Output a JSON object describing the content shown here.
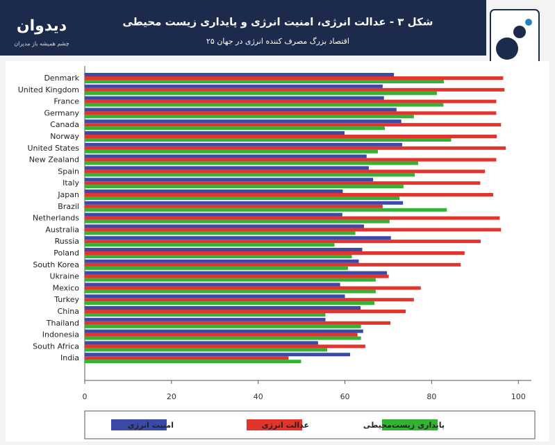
{
  "header": {
    "brand": "دیدوان",
    "tagline": "چشم همیشه باز مدیران",
    "title": "شکل ۳ - عدالت انرژی، امنیت انرژی و پایداری زیست محیطی",
    "subtitle": "۲۵ اقتصاد بزرگ مصرف کننده انرژی در جهان"
  },
  "chart_data": {
    "type": "bar",
    "orientation": "horizontal",
    "categories": [
      "Denmark",
      "United Kingdom",
      "France",
      "Germany",
      "Canada",
      "Norway",
      "United States",
      "New Zealand",
      "Spain",
      "Italy",
      "Japan",
      "Brazil",
      "Netherlands",
      "Australia",
      "Russia",
      "Poland",
      "South Korea",
      "Ukraine",
      "Mexico",
      "Turkey",
      "China",
      "Thailand",
      "Indonesia",
      "South Africa",
      "India"
    ],
    "series": [
      {
        "name": "امنیت انرژی",
        "color": "#3a4aa6",
        "values": [
          71.3,
          68.7,
          69,
          71.9,
          73,
          59.9,
          73.2,
          65,
          65.5,
          66.5,
          59.5,
          73.4,
          59.4,
          64.4,
          70.6,
          64,
          63.2,
          69.7,
          58.9,
          60,
          63.6,
          55.5,
          64.2,
          53.8,
          61.2
        ]
      },
      {
        "name": "عدالت انرژی",
        "color": "#e0342c",
        "values": [
          96.5,
          96.8,
          94.9,
          94.9,
          96,
          95,
          97.1,
          94.9,
          92.3,
          91.2,
          94.2,
          68.7,
          95.7,
          96,
          91.3,
          87.6,
          86.7,
          70.1,
          77.5,
          75.9,
          74,
          70.5,
          62.9,
          64.7,
          47
        ]
      },
      {
        "name": "پایداری زیست‌محیطی",
        "color": "#34b234",
        "values": [
          82.8,
          81.2,
          82.7,
          75.9,
          69.2,
          84.5,
          67.6,
          76.9,
          76.1,
          73.5,
          72.6,
          83.5,
          70.3,
          62.4,
          57.6,
          61.6,
          60.7,
          67.1,
          67.1,
          66.8,
          55.5,
          63.7,
          63.7,
          55.9,
          49.9
        ]
      }
    ],
    "xlim": [
      0,
      103
    ],
    "xticks": [
      0,
      20,
      40,
      60,
      80,
      100
    ],
    "grid": false
  }
}
